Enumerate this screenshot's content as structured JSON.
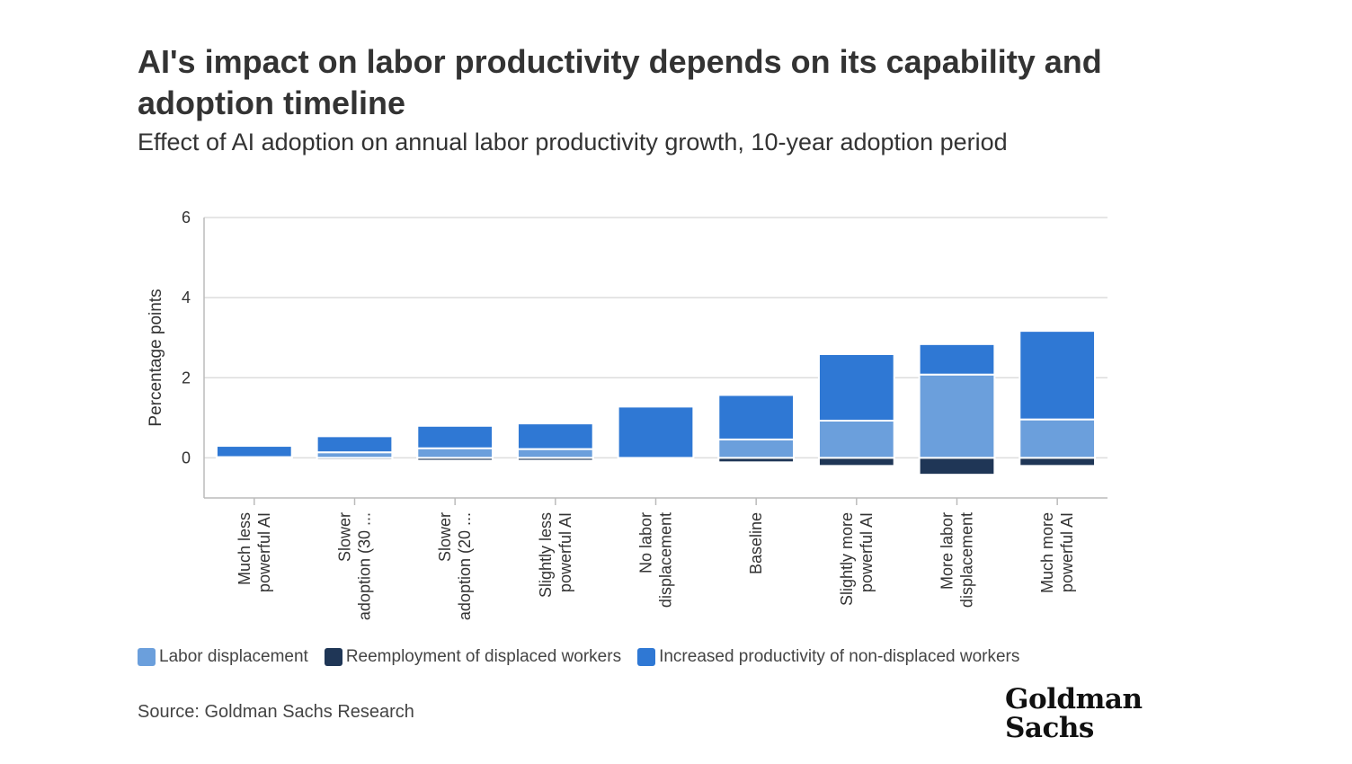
{
  "header": {
    "title": "AI's impact on labor productivity depends on its capability and adoption timeline",
    "subtitle": "Effect of AI adoption on annual labor productivity growth, 10-year adoption period"
  },
  "colors": {
    "labor_displacement": "#6b9fdc",
    "reemployment": "#1f3656",
    "increased_productivity": "#2f78d4",
    "grid": "#dddddd",
    "axis": "#bbbbbb"
  },
  "chart_data": {
    "type": "bar",
    "stacked": true,
    "ylabel": "Percentage points",
    "xlabel": "",
    "ylim": [
      -1,
      6
    ],
    "yticks": [
      0,
      2,
      4,
      6
    ],
    "grid": true,
    "legend_position": "bottom-left",
    "categories": [
      [
        "Much less",
        "powerful AI"
      ],
      [
        "Slower",
        "adoption (30 ..."
      ],
      [
        "Slower",
        "adoption (20 ..."
      ],
      [
        "Slightly less",
        "powerful AI"
      ],
      [
        "No labor",
        "displacement"
      ],
      [
        "Baseline"
      ],
      [
        "Slightly more",
        "powerful AI"
      ],
      [
        "More labor",
        "displacement"
      ],
      [
        "Much more",
        "powerful AI"
      ]
    ],
    "series": [
      {
        "name": "Labor displacement",
        "color_key": "labor_displacement",
        "values": [
          0.02,
          0.14,
          0.24,
          0.22,
          0.0,
          0.46,
          0.93,
          2.08,
          0.96
        ]
      },
      {
        "name": "Reemployment of displaced workers",
        "color_key": "reemployment",
        "values": [
          -0.01,
          -0.05,
          -0.07,
          -0.07,
          0.0,
          -0.11,
          -0.2,
          -0.42,
          -0.2
        ]
      },
      {
        "name": "Increased productivity of non-displaced workers",
        "color_key": "increased_productivity",
        "values": [
          0.28,
          0.4,
          0.56,
          0.64,
          1.28,
          1.11,
          1.66,
          0.76,
          2.21
        ]
      }
    ]
  },
  "legend": {
    "items": [
      {
        "label": "Labor displacement",
        "color": "#6b9fdc"
      },
      {
        "label": "Reemployment of displaced workers",
        "color": "#1f3656"
      },
      {
        "label": "Increased productivity of non-displaced workers",
        "color": "#2f78d4"
      }
    ]
  },
  "footer": {
    "source": "Source: Goldman Sachs Research",
    "logo_line1": "Goldman",
    "logo_line2": "Sachs"
  }
}
